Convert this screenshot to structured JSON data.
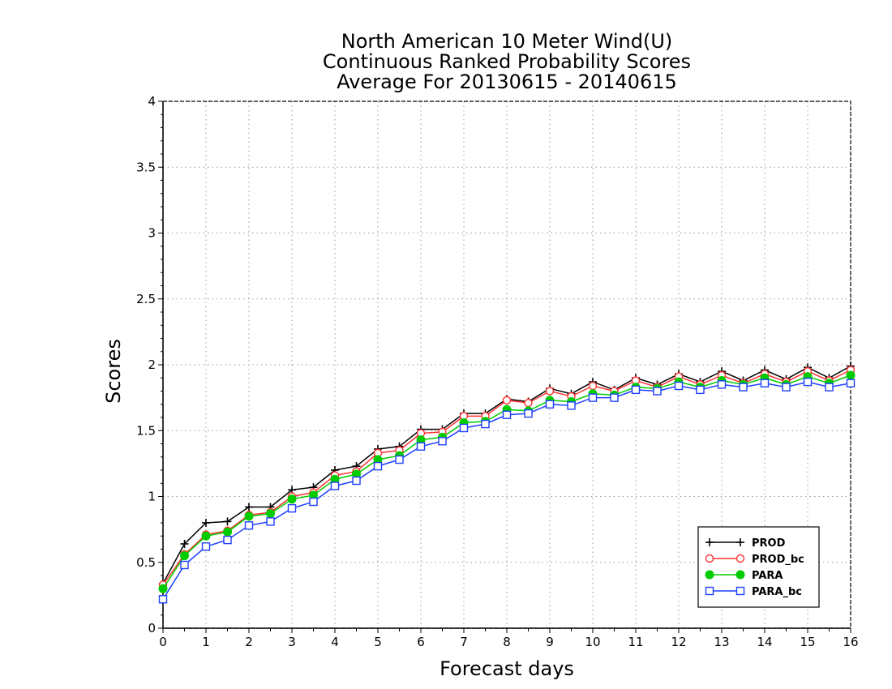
{
  "chart_data": {
    "type": "line",
    "title": [
      "North American 10 Meter Wind(U)",
      "Continuous Ranked Probability Scores",
      "Average For 20130615 - 20140615"
    ],
    "xlabel": "Forecast days",
    "ylabel": "Scores",
    "xlim": [
      0,
      16
    ],
    "ylim": [
      0,
      4
    ],
    "x_ticks": [
      "0",
      "1",
      "2",
      "3",
      "4",
      "5",
      "6",
      "7",
      "8",
      "9",
      "10",
      "11",
      "12",
      "13",
      "14",
      "15",
      "16"
    ],
    "y_ticks": [
      "0",
      "0.5",
      "1",
      "1.5",
      "2",
      "2.5",
      "3",
      "3.5",
      "4"
    ],
    "grid": true,
    "legend_position": "bottom-right",
    "x": [
      0,
      0.5,
      1,
      1.5,
      2,
      2.5,
      3,
      3.5,
      4,
      4.5,
      5,
      5.5,
      6,
      6.5,
      7,
      7.5,
      8,
      8.5,
      9,
      9.5,
      10,
      10.5,
      11,
      11.5,
      12,
      12.5,
      13,
      13.5,
      14,
      14.5,
      15,
      15.5,
      16
    ],
    "series": [
      {
        "name": "PROD",
        "color": "#000000",
        "marker": "plus",
        "values": [
          0.34,
          0.64,
          0.8,
          0.81,
          0.92,
          0.92,
          1.05,
          1.07,
          1.2,
          1.23,
          1.36,
          1.38,
          1.51,
          1.51,
          1.63,
          1.63,
          1.74,
          1.72,
          1.82,
          1.78,
          1.87,
          1.81,
          1.9,
          1.85,
          1.93,
          1.87,
          1.95,
          1.88,
          1.96,
          1.89,
          1.98,
          1.9,
          1.99
        ]
      },
      {
        "name": "PROD_bc",
        "color": "#ff3333",
        "marker": "open-circle",
        "values": [
          0.33,
          0.56,
          0.71,
          0.74,
          0.86,
          0.88,
          1.0,
          1.03,
          1.16,
          1.19,
          1.33,
          1.35,
          1.48,
          1.49,
          1.61,
          1.61,
          1.73,
          1.71,
          1.8,
          1.76,
          1.84,
          1.8,
          1.88,
          1.83,
          1.91,
          1.85,
          1.92,
          1.86,
          1.93,
          1.87,
          1.95,
          1.88,
          1.96
        ]
      },
      {
        "name": "PARA",
        "color": "#00cc00",
        "marker": "filled-circle",
        "values": [
          0.3,
          0.55,
          0.7,
          0.73,
          0.85,
          0.87,
          0.98,
          1.01,
          1.13,
          1.17,
          1.28,
          1.31,
          1.43,
          1.45,
          1.56,
          1.57,
          1.66,
          1.65,
          1.73,
          1.72,
          1.78,
          1.77,
          1.83,
          1.82,
          1.87,
          1.83,
          1.88,
          1.85,
          1.9,
          1.85,
          1.91,
          1.86,
          1.92
        ]
      },
      {
        "name": "PARA_bc",
        "color": "#1f3fff",
        "marker": "open-square",
        "values": [
          0.22,
          0.48,
          0.62,
          0.67,
          0.78,
          0.81,
          0.91,
          0.96,
          1.08,
          1.12,
          1.23,
          1.28,
          1.38,
          1.42,
          1.52,
          1.55,
          1.62,
          1.63,
          1.7,
          1.69,
          1.75,
          1.75,
          1.81,
          1.8,
          1.84,
          1.81,
          1.85,
          1.83,
          1.86,
          1.83,
          1.87,
          1.83,
          1.86
        ]
      }
    ]
  }
}
